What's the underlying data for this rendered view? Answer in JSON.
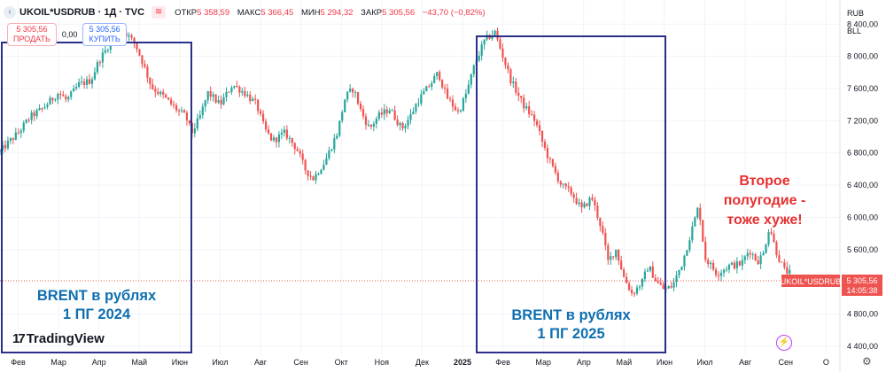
{
  "header": {
    "symbol": "UKOIL*USDRUB · 1Д · TVC",
    "open_label": "ОТКР",
    "open": "5 358,59",
    "high_label": "МАКС",
    "high": "5 366,45",
    "low_label": "МИН",
    "low": "5 294,32",
    "close_label": "ЗАКР",
    "close": "5 305,56",
    "change": "−43,70 (−0,82%)"
  },
  "trade": {
    "sell_price": "5 305,56",
    "sell_label": "ПРОДАТЬ",
    "spread": "0,00",
    "buy_price": "5 305,56",
    "buy_label": "КУПИТЬ"
  },
  "currency": [
    "RUB",
    "BLL"
  ],
  "price_tag": {
    "symbol": "UKOIL*USDRUB",
    "value": "5 305,56",
    "time": "14:05:38"
  },
  "branding": {
    "name": "TradingView"
  },
  "annotations": {
    "box1": "BRENT в рублях\n1 ПГ 2024",
    "box2": "BRENT в рублях\n1 ПГ 2025",
    "note": "Второе\nполугодие  -\nтоже хуже!"
  },
  "colors": {
    "up": "#26a69a",
    "down": "#ef5350",
    "box": "#2a2f87",
    "note": "#e83030",
    "annotation": "#0f6fb0"
  },
  "chart_data": {
    "type": "line",
    "style": "candlestick",
    "y_range": [
      4300,
      8700
    ],
    "y_ticks": [
      8400,
      8000,
      7600,
      7200,
      6800,
      6400,
      6000,
      5600,
      4800,
      4400
    ],
    "y_tick_labels": [
      "8 400,00",
      "8 000,00",
      "7 600,00",
      "7 200,00",
      "6 800,00",
      "6 400,00",
      "6 000,00",
      "5 600,00",
      "4 800,00",
      "4 400,00"
    ],
    "x_labels": [
      "Фев",
      "Мар",
      "Апр",
      "Май",
      "Июн",
      "Июл",
      "Авг",
      "Сен",
      "Окт",
      "Ноя",
      "Дек",
      "2025",
      "Фев",
      "Мар",
      "Апр",
      "Май",
      "Июн",
      "Июл",
      "Авг",
      "Сен",
      "О"
    ],
    "x_label_months": [
      1,
      2,
      3,
      4,
      5,
      6,
      7,
      8,
      9,
      10,
      11,
      12,
      13,
      14,
      15,
      16,
      17,
      18,
      19,
      20,
      21
    ],
    "x_range_months": [
      0.55,
      21.3
    ],
    "path": [
      [
        0.55,
        6820
      ],
      [
        0.8,
        6950
      ],
      [
        1.0,
        7050
      ],
      [
        1.3,
        7250
      ],
      [
        1.6,
        7350
      ],
      [
        2.0,
        7550
      ],
      [
        2.2,
        7450
      ],
      [
        2.5,
        7650
      ],
      [
        2.8,
        7700
      ],
      [
        3.0,
        7950
      ],
      [
        3.2,
        8100
      ],
      [
        3.45,
        8380
      ],
      [
        3.7,
        8270
      ],
      [
        3.9,
        8150
      ],
      [
        4.1,
        7900
      ],
      [
        4.3,
        7620
      ],
      [
        4.6,
        7500
      ],
      [
        4.9,
        7350
      ],
      [
        5.15,
        7250
      ],
      [
        5.3,
        7050
      ],
      [
        5.5,
        7250
      ],
      [
        5.7,
        7550
      ],
      [
        6.0,
        7400
      ],
      [
        6.3,
        7650
      ],
      [
        6.6,
        7550
      ],
      [
        6.9,
        7400
      ],
      [
        7.1,
        7100
      ],
      [
        7.3,
        6950
      ],
      [
        7.6,
        7050
      ],
      [
        7.9,
        6850
      ],
      [
        8.1,
        6600
      ],
      [
        8.3,
        6480
      ],
      [
        8.6,
        6700
      ],
      [
        8.9,
        7050
      ],
      [
        9.1,
        7500
      ],
      [
        9.3,
        7600
      ],
      [
        9.5,
        7300
      ],
      [
        9.7,
        7100
      ],
      [
        9.9,
        7250
      ],
      [
        10.2,
        7350
      ],
      [
        10.5,
        7100
      ],
      [
        10.7,
        7250
      ],
      [
        10.9,
        7450
      ],
      [
        11.2,
        7650
      ],
      [
        11.4,
        7800
      ],
      [
        11.6,
        7500
      ],
      [
        11.9,
        7300
      ],
      [
        12.1,
        7550
      ],
      [
        12.3,
        7900
      ],
      [
        12.55,
        8200
      ],
      [
        12.8,
        8300
      ],
      [
        13.0,
        8000
      ],
      [
        13.2,
        7700
      ],
      [
        13.5,
        7400
      ],
      [
        13.8,
        7200
      ],
      [
        14.0,
        6900
      ],
      [
        14.2,
        6650
      ],
      [
        14.45,
        6400
      ],
      [
        14.7,
        6300
      ],
      [
        14.95,
        6100
      ],
      [
        15.2,
        6250
      ],
      [
        15.45,
        5850
      ],
      [
        15.6,
        5450
      ],
      [
        15.8,
        5600
      ],
      [
        16.0,
        5250
      ],
      [
        16.2,
        5050
      ],
      [
        16.45,
        5200
      ],
      [
        16.6,
        5400
      ],
      [
        16.8,
        5200
      ],
      [
        17.0,
        5100
      ],
      [
        17.2,
        5150
      ],
      [
        17.45,
        5450
      ],
      [
        17.65,
        5800
      ],
      [
        17.85,
        6150
      ],
      [
        18.0,
        5500
      ],
      [
        18.3,
        5300
      ],
      [
        18.6,
        5400
      ],
      [
        18.9,
        5420
      ],
      [
        19.1,
        5600
      ],
      [
        19.3,
        5450
      ],
      [
        19.45,
        5550
      ],
      [
        19.6,
        5900
      ],
      [
        19.75,
        5600
      ],
      [
        19.95,
        5350
      ],
      [
        20.1,
        5305.56
      ]
    ]
  }
}
